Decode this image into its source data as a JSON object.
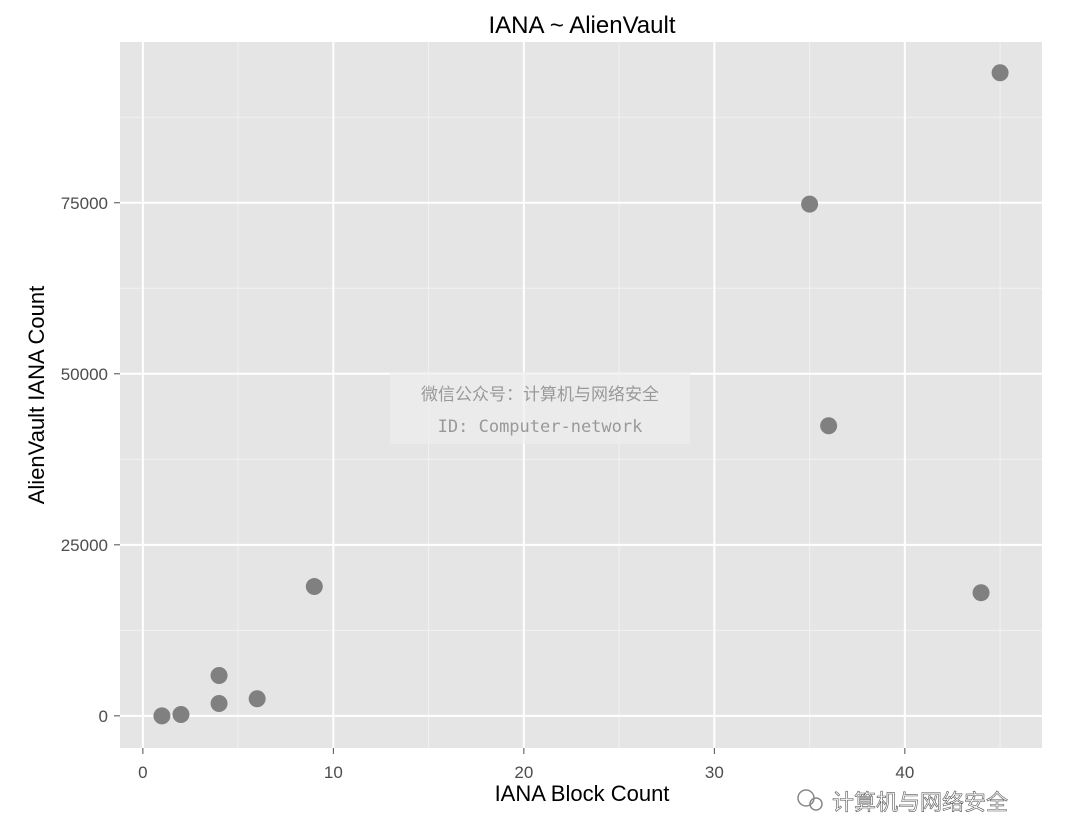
{
  "chart_data": {
    "type": "scatter",
    "title": "IANA ~ AlienVault",
    "xlabel": "IANA Block Count",
    "ylabel": "AlienVault IANA Count",
    "xlim": [
      -1.2,
      47.2
    ],
    "ylim": [
      -4700,
      98500
    ],
    "xticks": [
      0,
      10,
      20,
      30,
      40
    ],
    "yticks": [
      0,
      25000,
      50000,
      75000
    ],
    "grid": true,
    "background": "#e5e5e5",
    "point_color": "#808080",
    "x": [
      1,
      2,
      4,
      4,
      6,
      9,
      35,
      36,
      44,
      45
    ],
    "y": [
      0,
      200,
      1800,
      5900,
      2500,
      18900,
      74800,
      42400,
      18000,
      94000
    ]
  },
  "watermark": {
    "line1": "微信公众号：计算机与网络安全",
    "line2": "ID: Computer-network",
    "logo_text": "计算机与网络安全"
  }
}
